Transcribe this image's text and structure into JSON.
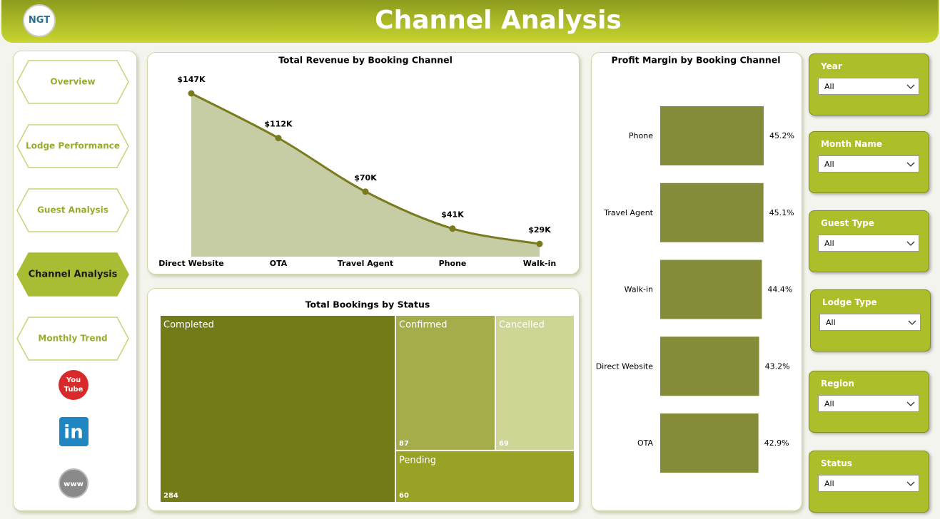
{
  "header": {
    "logo": "NGT",
    "title": "Channel Analysis"
  },
  "nav": [
    "Overview",
    "Lodge Performance",
    "Guest Analysis",
    "Channel Analysis",
    "Monthly Trend"
  ],
  "social": {
    "youtube": [
      "You",
      "Tube"
    ],
    "linkedin": "in",
    "web": "www"
  },
  "chart_data": [
    {
      "type": "area",
      "title": "Total Revenue by Booking Channel",
      "categories": [
        "Direct Website",
        "OTA",
        "Travel Agent",
        "Phone",
        "Walk-in"
      ],
      "values": [
        147,
        112,
        70,
        41,
        29
      ],
      "value_labels": [
        "$147K",
        "$112K",
        "$70K",
        "$41K",
        "$29K"
      ],
      "color": "#7a7a1e",
      "fill": "#c6cca4"
    },
    {
      "type": "hbar",
      "title": "Profit Margin by Booking Channel",
      "categories": [
        "Phone",
        "Travel Agent",
        "Walk-in",
        "Direct Website",
        "OTA"
      ],
      "values": [
        45.2,
        45.1,
        44.4,
        43.2,
        42.9
      ],
      "value_labels": [
        "45.2%",
        "45.1%",
        "44.4%",
        "43.2%",
        "42.9%"
      ],
      "color": "#848c3a"
    },
    {
      "type": "treemap",
      "title": "Total Bookings by Status",
      "categories": [
        "Completed",
        "Confirmed",
        "Cancelled",
        "Pending"
      ],
      "values": [
        284,
        87,
        69,
        60
      ],
      "colors": [
        "#737a18",
        "#a4ad4a",
        "#cfd594",
        "#98a224"
      ]
    }
  ],
  "filters": [
    {
      "label": "Year",
      "value": "All"
    },
    {
      "label": "Month Name",
      "value": "All"
    },
    {
      "label": "Guest Type",
      "value": "All"
    },
    {
      "label": "Lodge Type",
      "value": "All"
    },
    {
      "label": "Region",
      "value": "All"
    },
    {
      "label": "Status",
      "value": "All"
    }
  ]
}
